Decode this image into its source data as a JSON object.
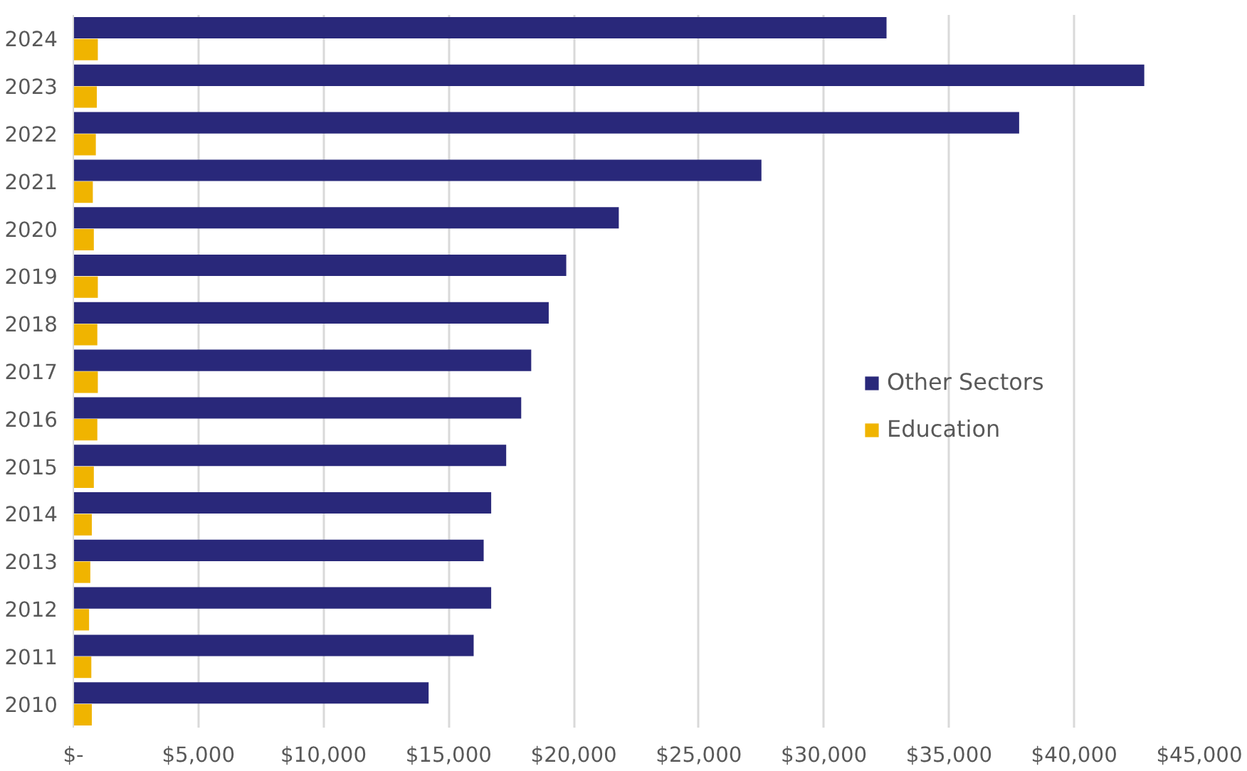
{
  "chart_data": {
    "type": "bar",
    "orientation": "horizontal",
    "categories": [
      "2024",
      "2023",
      "2022",
      "2021",
      "2020",
      "2019",
      "2018",
      "2017",
      "2016",
      "2015",
      "2014",
      "2013",
      "2012",
      "2011",
      "2010"
    ],
    "series": [
      {
        "name": "Other Sectors",
        "color": "#29287a",
        "values": [
          32500,
          42800,
          37800,
          27500,
          21800,
          19700,
          19000,
          18300,
          17900,
          17300,
          16700,
          16400,
          16700,
          16000,
          14200
        ]
      },
      {
        "name": "Education",
        "color": "#f0b400",
        "values": [
          980,
          940,
          900,
          780,
          820,
          980,
          960,
          980,
          960,
          820,
          740,
          680,
          630,
          720,
          740
        ]
      }
    ],
    "xlim": [
      0,
      45000
    ],
    "xticks": [
      {
        "value": 0,
        "label": "$-"
      },
      {
        "value": 5000,
        "label": "$5,000"
      },
      {
        "value": 10000,
        "label": "$10,000"
      },
      {
        "value": 15000,
        "label": "$15,000"
      },
      {
        "value": 20000,
        "label": "$20,000"
      },
      {
        "value": 25000,
        "label": "$25,000"
      },
      {
        "value": 30000,
        "label": "$30,000"
      },
      {
        "value": 35000,
        "label": "$35,000"
      },
      {
        "value": 40000,
        "label": "$40,000"
      },
      {
        "value": 45000,
        "label": "$45,000"
      }
    ],
    "grid": "x",
    "legend": "right"
  }
}
